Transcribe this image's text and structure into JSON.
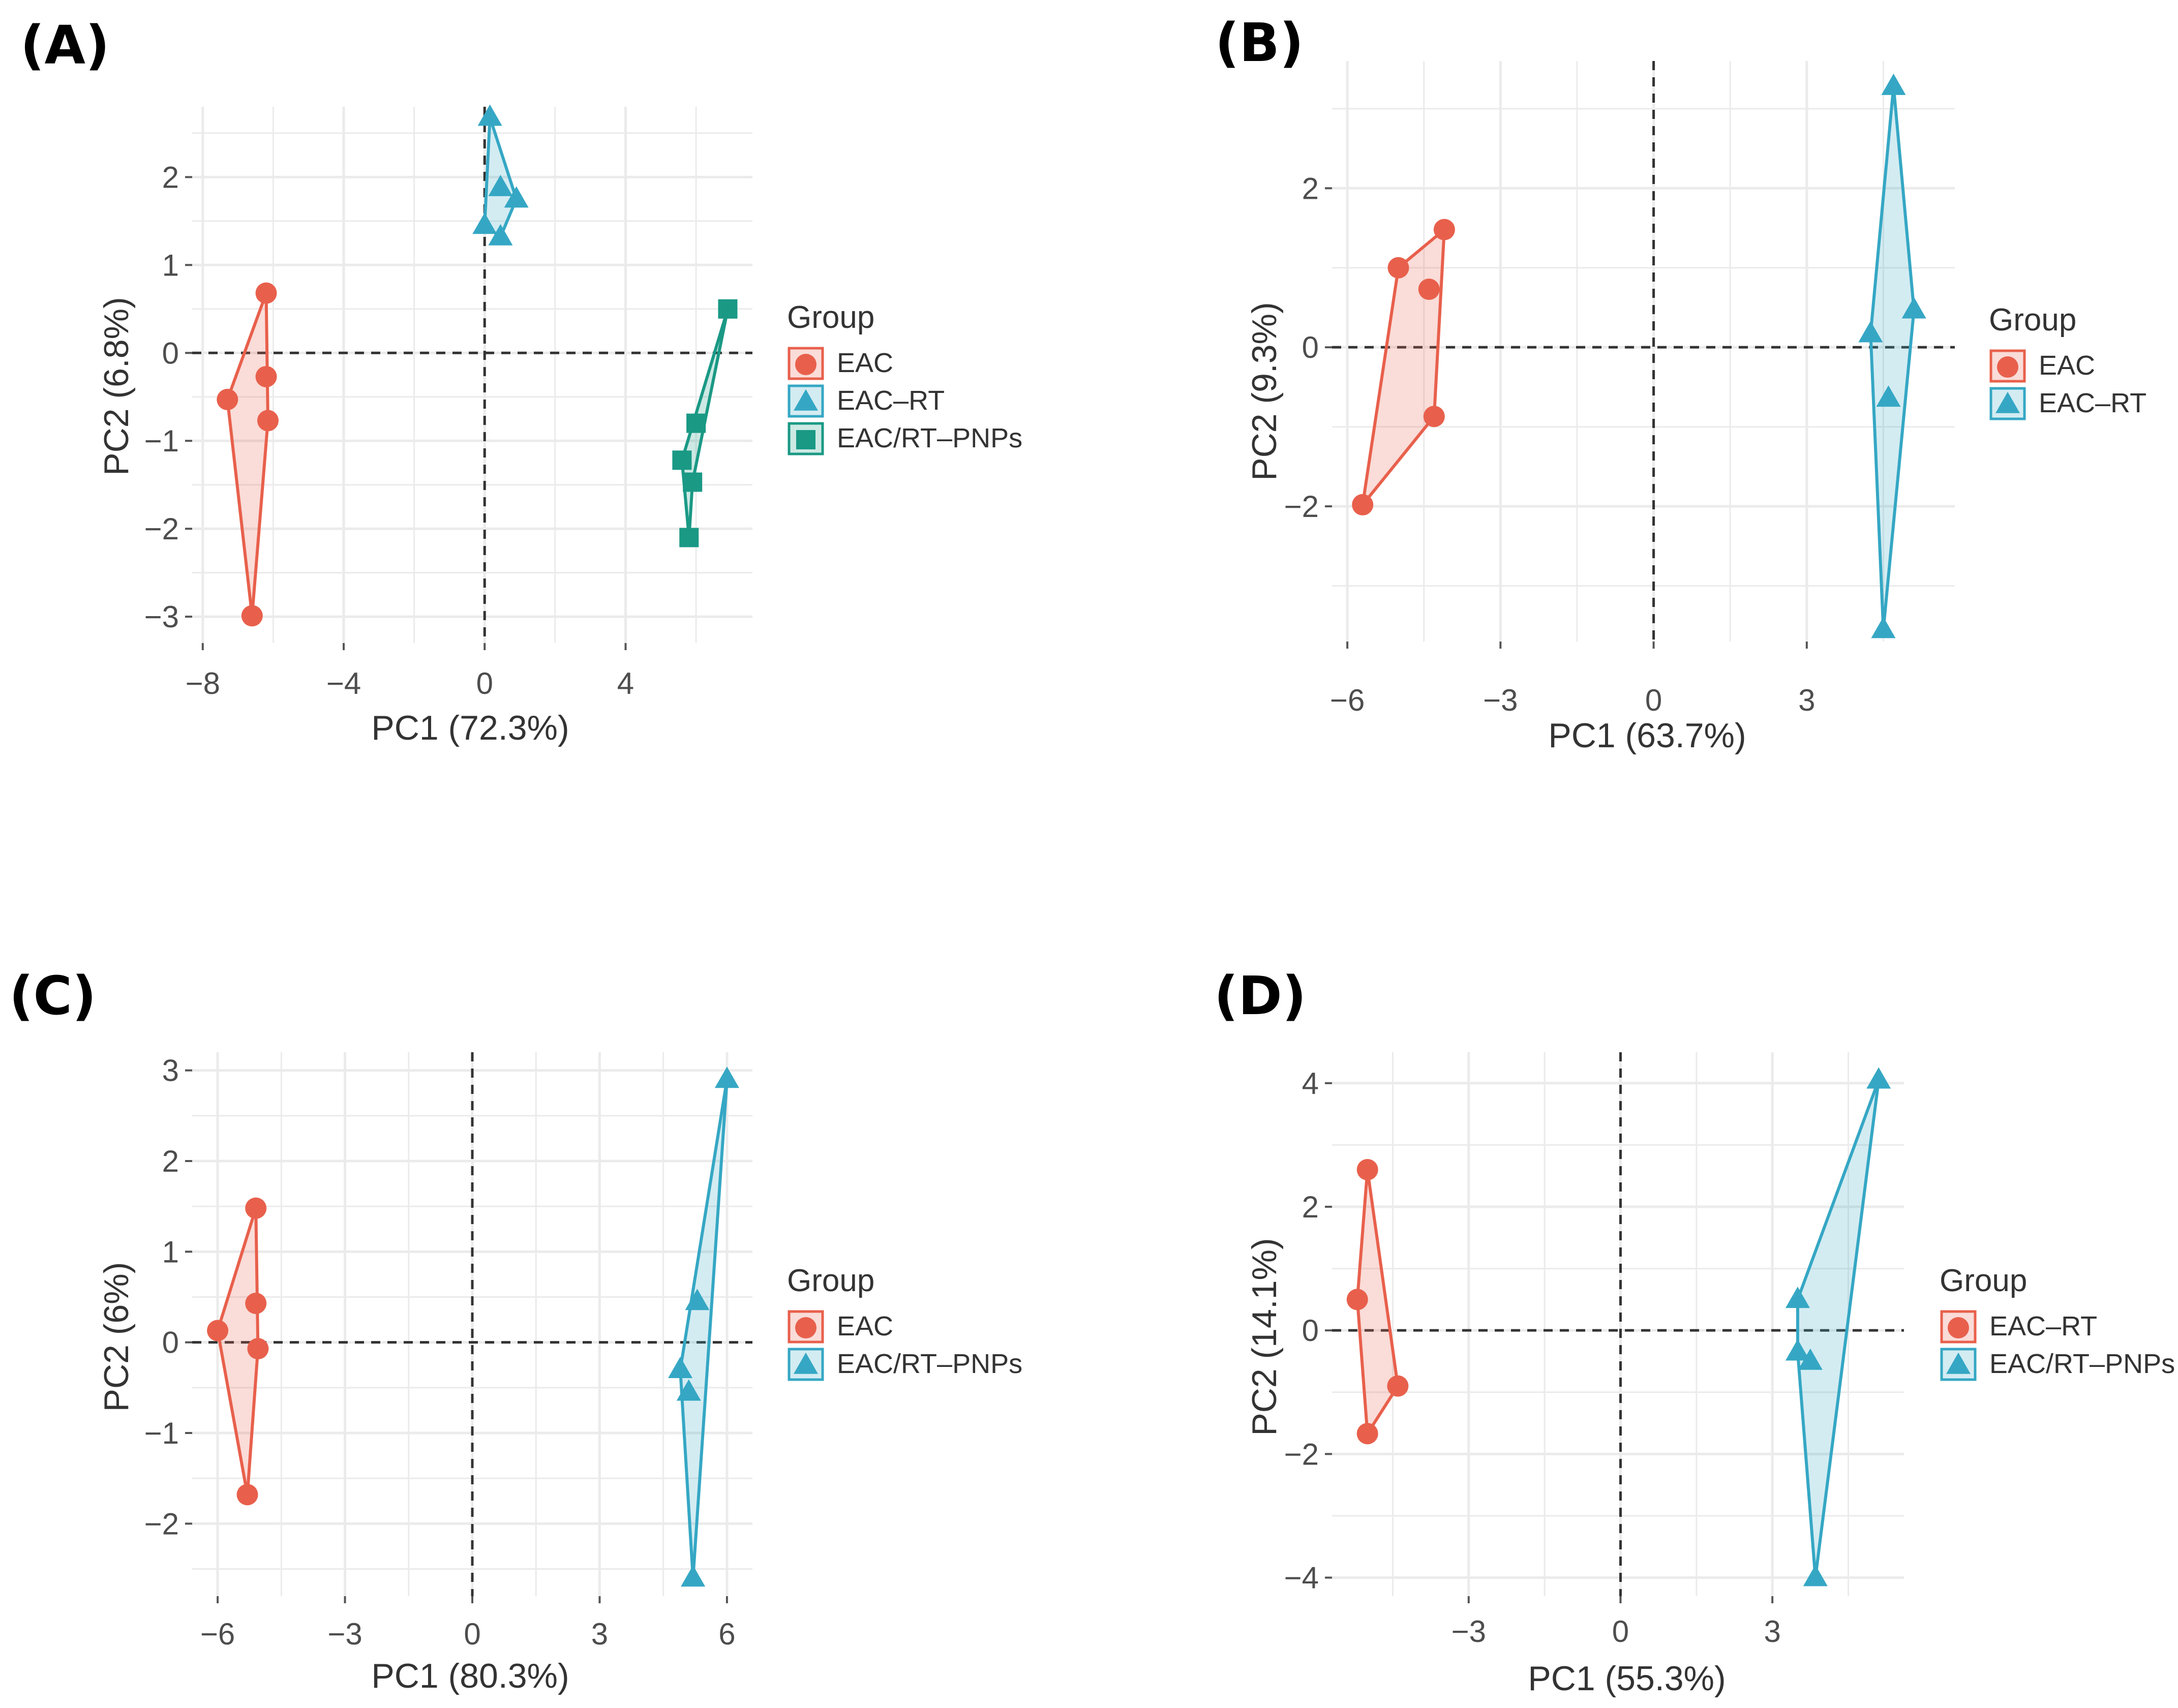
{
  "colors": {
    "EAC": "#e8604c",
    "EAC-RT": "#35a7c4",
    "EAC/RT-PNPs": "#1a9985",
    "EAC/RT-PNPs-C": "#35a7c4",
    "EAC-RT-D": "#e8604c",
    "EAC/RT-PNPs-D": "#35a7c4"
  },
  "chart_data": [
    {
      "id": "A",
      "type": "scatter",
      "panel_label": "(A)",
      "xlabel": "PC1 (72.3%)",
      "ylabel": "PC2 (6.8%)",
      "xlim": [
        -8.3,
        7.6
      ],
      "ylim": [
        -3.3,
        2.8
      ],
      "xticks": [
        -8,
        -4,
        0,
        4
      ],
      "xtick_labels": [
        "−8",
        "−4",
        "0",
        "4"
      ],
      "yticks": [
        -3,
        -2,
        -1,
        0,
        1,
        2
      ],
      "ytick_labels": [
        "−3",
        "−2",
        "−1",
        "0",
        "1",
        "2"
      ],
      "legend_title": "Group",
      "legend_position": "right",
      "series": [
        {
          "name": "EAC",
          "marker": "circle",
          "color_key": "EAC",
          "points": [
            [
              -6.2,
              0.68
            ],
            [
              -7.3,
              -0.53
            ],
            [
              -6.6,
              -2.99
            ],
            [
              -6.2,
              -0.27
            ],
            [
              -6.15,
              -0.77
            ]
          ],
          "hull": [
            [
              -6.2,
              0.68
            ],
            [
              -7.3,
              -0.53
            ],
            [
              -6.6,
              -2.99
            ],
            [
              -6.15,
              -0.77
            ]
          ]
        },
        {
          "name": "EAC–RT",
          "marker": "triangle",
          "color_key": "EAC-RT",
          "points": [
            [
              0.15,
              2.68
            ],
            [
              0.0,
              1.45
            ],
            [
              0.45,
              1.32
            ],
            [
              0.9,
              1.75
            ],
            [
              0.45,
              1.88
            ]
          ],
          "hull": [
            [
              0.15,
              2.68
            ],
            [
              0.9,
              1.75
            ],
            [
              0.45,
              1.32
            ],
            [
              0.0,
              1.45
            ]
          ]
        },
        {
          "name": "EAC/RT–PNPs",
          "marker": "square",
          "color_key": "EAC/RT-PNPs",
          "points": [
            [
              6.9,
              0.5
            ],
            [
              6.0,
              -0.8
            ],
            [
              5.6,
              -1.22
            ],
            [
              5.9,
              -1.47
            ],
            [
              5.8,
              -2.1
            ]
          ],
          "hull": [
            [
              6.9,
              0.5
            ],
            [
              5.6,
              -1.22
            ],
            [
              5.8,
              -2.1
            ],
            [
              5.9,
              -1.47
            ]
          ]
        }
      ]
    },
    {
      "id": "B",
      "type": "scatter",
      "panel_label": "(B)",
      "xlabel": "PC1 (63.7%)",
      "ylabel": "PC2 (9.3%)",
      "xlim": [
        -6.3,
        5.9
      ],
      "ylim": [
        -3.7,
        3.6
      ],
      "xticks": [
        -6,
        -3,
        0,
        3
      ],
      "xtick_labels": [
        "−6",
        "−3",
        "0",
        "3"
      ],
      "yticks": [
        -2,
        0,
        2
      ],
      "ytick_labels": [
        "−2",
        "0",
        "2"
      ],
      "legend_title": "Group",
      "legend_position": "right",
      "series": [
        {
          "name": "EAC",
          "marker": "circle",
          "color_key": "EAC",
          "points": [
            [
              -4.1,
              1.48
            ],
            [
              -5.0,
              1.0
            ],
            [
              -4.4,
              0.73
            ],
            [
              -4.3,
              -0.87
            ],
            [
              -5.7,
              -1.98
            ]
          ],
          "hull": [
            [
              -4.1,
              1.48
            ],
            [
              -5.0,
              1.0
            ],
            [
              -5.7,
              -1.98
            ],
            [
              -4.3,
              -0.87
            ]
          ]
        },
        {
          "name": "EAC–RT",
          "marker": "triangle",
          "color_key": "EAC-RT",
          "points": [
            [
              4.7,
              3.28
            ],
            [
              5.1,
              0.47
            ],
            [
              4.25,
              0.17
            ],
            [
              4.6,
              -0.64
            ],
            [
              4.5,
              -3.55
            ]
          ],
          "hull": [
            [
              4.7,
              3.28
            ],
            [
              5.1,
              0.47
            ],
            [
              4.5,
              -3.55
            ],
            [
              4.25,
              0.17
            ]
          ]
        }
      ]
    },
    {
      "id": "C",
      "type": "scatter",
      "panel_label": "(C)",
      "xlabel": "PC1 (80.3%)",
      "ylabel": "PC2 (6%)",
      "xlim": [
        -6.6,
        6.6
      ],
      "ylim": [
        -2.8,
        3.2
      ],
      "xticks": [
        -6,
        -3,
        0,
        3,
        6
      ],
      "xtick_labels": [
        "−6",
        "−3",
        "0",
        "3",
        "6"
      ],
      "yticks": [
        -2,
        -1,
        0,
        1,
        2,
        3
      ],
      "ytick_labels": [
        "−2",
        "−1",
        "0",
        "1",
        "2",
        "3"
      ],
      "legend_title": "Group",
      "legend_position": "right",
      "series": [
        {
          "name": "EAC",
          "marker": "circle",
          "color_key": "EAC",
          "points": [
            [
              -5.1,
              1.48
            ],
            [
              -6.0,
              0.13
            ],
            [
              -5.3,
              -1.68
            ],
            [
              -5.1,
              0.43
            ],
            [
              -5.05,
              -0.07
            ]
          ],
          "hull": [
            [
              -5.1,
              1.48
            ],
            [
              -6.0,
              0.13
            ],
            [
              -5.3,
              -1.68
            ],
            [
              -5.05,
              -0.07
            ]
          ]
        },
        {
          "name": "EAC/RT–PNPs",
          "marker": "triangle",
          "color_key": "EAC/RT-PNPs-C",
          "points": [
            [
              6.0,
              2.9
            ],
            [
              5.3,
              0.45
            ],
            [
              4.9,
              -0.3
            ],
            [
              5.1,
              -0.55
            ],
            [
              5.2,
              -2.6
            ]
          ],
          "hull": [
            [
              6.0,
              2.9
            ],
            [
              5.2,
              -2.6
            ],
            [
              4.9,
              -0.3
            ]
          ]
        }
      ]
    },
    {
      "id": "D",
      "type": "scatter",
      "panel_label": "(D)",
      "xlabel": "PC1 (55.3%)",
      "ylabel": "PC2 (14.1%)",
      "xlim": [
        -5.7,
        5.6
      ],
      "ylim": [
        -4.3,
        4.5
      ],
      "xticks": [
        -3,
        0,
        3
      ],
      "xtick_labels": [
        "−3",
        "0",
        "3"
      ],
      "yticks": [
        -4,
        -2,
        0,
        2,
        4
      ],
      "ytick_labels": [
        "−4",
        "−2",
        "0",
        "2",
        "4"
      ],
      "legend_title": "Group",
      "legend_position": "right",
      "series": [
        {
          "name": "EAC–RT",
          "marker": "circle",
          "color_key": "EAC-RT-D",
          "points": [
            [
              -5.0,
              2.6
            ],
            [
              -5.2,
              0.5
            ],
            [
              -4.4,
              -0.9
            ],
            [
              -5.0,
              -1.67
            ]
          ],
          "hull": [
            [
              -5.0,
              2.6
            ],
            [
              -5.2,
              0.5
            ],
            [
              -5.0,
              -1.67
            ],
            [
              -4.4,
              -0.9
            ]
          ]
        },
        {
          "name": "EAC/RT–PNPs",
          "marker": "triangle",
          "color_key": "EAC/RT-PNPs-D",
          "points": [
            [
              5.1,
              4.05
            ],
            [
              3.5,
              0.5
            ],
            [
              3.5,
              -0.35
            ],
            [
              3.75,
              -0.5
            ],
            [
              3.85,
              -4.0
            ]
          ],
          "hull": [
            [
              5.1,
              4.05
            ],
            [
              3.85,
              -4.0
            ],
            [
              3.5,
              -0.35
            ],
            [
              3.5,
              0.5
            ]
          ]
        }
      ]
    }
  ]
}
